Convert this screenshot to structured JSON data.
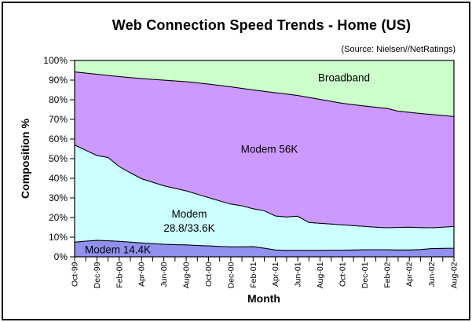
{
  "title": "Web Connection Speed Trends - Home (US)",
  "source": "(Source: Nielsen//NetRatings)",
  "y_axis": {
    "title": "Composition %",
    "tick_labels": [
      "0%",
      "10%",
      "20%",
      "30%",
      "40%",
      "50%",
      "60%",
      "70%",
      "80%",
      "90%",
      "100%"
    ]
  },
  "x_axis": {
    "title": "Month",
    "tick_labels": [
      "Oct-99",
      "Dec-99",
      "Feb-00",
      "Apr-00",
      "Jun-00",
      "Aug-00",
      "Oct-00",
      "Dec-00",
      "Feb-01",
      "Apr-01",
      "Jun-01",
      "Aug-01",
      "Oct-01",
      "Dec-01",
      "Feb-02",
      "Apr-02",
      "Jun-02",
      "Aug-02"
    ]
  },
  "chart_data": {
    "type": "area",
    "stacked": true,
    "title": "Web Connection Speed Trends - Home (US)",
    "xlabel": "Month",
    "ylabel": "Composition %",
    "ylim": [
      0,
      100
    ],
    "grid": false,
    "legend": "labels drawn inside areas",
    "x": [
      "Oct-99",
      "Nov-99",
      "Dec-99",
      "Jan-00",
      "Feb-00",
      "Mar-00",
      "Apr-00",
      "May-00",
      "Jun-00",
      "Jul-00",
      "Aug-00",
      "Sep-00",
      "Oct-00",
      "Nov-00",
      "Dec-00",
      "Jan-01",
      "Feb-01",
      "Mar-01",
      "Apr-01",
      "May-01",
      "Jun-01",
      "Jul-01",
      "Aug-01",
      "Sep-01",
      "Oct-01",
      "Nov-01",
      "Dec-01",
      "Jan-02",
      "Feb-02",
      "Mar-02",
      "Apr-02",
      "May-02",
      "Jun-02",
      "Jul-02",
      "Aug-02"
    ],
    "series": [
      {
        "name": "Modem 14.4K",
        "color": "#9090ee",
        "values": [
          7.5,
          8.0,
          8.4,
          8.2,
          7.9,
          7.5,
          7.1,
          6.7,
          6.4,
          6.2,
          6.1,
          5.8,
          5.6,
          5.3,
          5.1,
          5.1,
          5.2,
          4.4,
          3.5,
          3.3,
          3.3,
          3.3,
          3.3,
          3.4,
          3.4,
          3.5,
          3.6,
          3.6,
          3.6,
          3.5,
          3.5,
          3.7,
          4.2,
          4.3,
          4.4
        ]
      },
      {
        "name": "Modem 28.8/33.6K",
        "color": "#ccffff",
        "values": [
          49.5,
          46.3,
          43.2,
          42.4,
          38.1,
          35.3,
          32.7,
          31.3,
          29.8,
          28.7,
          27.5,
          26.1,
          24.6,
          23.2,
          21.8,
          20.9,
          19.3,
          19.1,
          17.3,
          17.0,
          17.4,
          14.2,
          13.8,
          13.3,
          12.9,
          12.4,
          11.9,
          11.5,
          11.2,
          11.5,
          11.6,
          11.2,
          10.6,
          10.8,
          11.1
        ]
      },
      {
        "name": "Modem 56K",
        "color": "#cc99ff",
        "values": [
          37.2,
          39.3,
          41.4,
          41.8,
          45.8,
          48.5,
          51.0,
          52.4,
          53.8,
          54.7,
          55.6,
          56.7,
          57.8,
          58.8,
          59.7,
          59.8,
          60.5,
          60.8,
          62.8,
          62.6,
          61.5,
          63.7,
          63.1,
          62.5,
          61.9,
          61.6,
          61.3,
          61.1,
          60.8,
          59.2,
          58.5,
          58.1,
          57.7,
          56.9,
          56.0
        ]
      },
      {
        "name": "Broadband",
        "color": "#ccffcc",
        "values": [
          5.8,
          6.4,
          7.0,
          7.6,
          8.2,
          8.7,
          9.2,
          9.6,
          10.0,
          10.4,
          10.8,
          11.4,
          12.0,
          12.7,
          13.4,
          14.2,
          15.0,
          15.7,
          16.4,
          17.1,
          17.8,
          18.8,
          19.8,
          20.8,
          21.8,
          22.5,
          23.2,
          23.8,
          24.4,
          25.8,
          26.4,
          27.0,
          27.5,
          28.0,
          28.5
        ]
      }
    ],
    "area_labels": {
      "broadband": "Broadband",
      "modem56": "Modem 56K",
      "modem288_line1": "Modem",
      "modem288_line2": "28.8/33.6K",
      "modem14": "Modem 14.4K"
    }
  }
}
